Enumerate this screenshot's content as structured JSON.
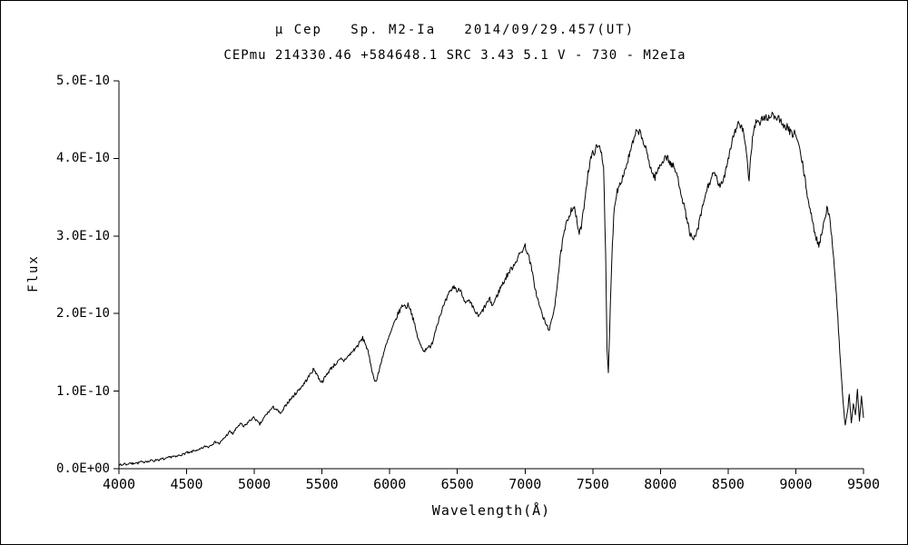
{
  "chart_data": {
    "type": "line",
    "title": "μ Cep   Sp. M2-Ia   2014/09/29.457(UT)",
    "subtitle": "CEPmu 214330.46 +584648.1 SRC 3.43 5.1 V - 730 - M2eIa",
    "xlabel": "Wavelength(Å)",
    "ylabel": "Flux",
    "xlim": [
      4000,
      9500
    ],
    "ylim": [
      0,
      5e-10
    ],
    "y_max_1e10": 5,
    "grid": false,
    "legend": "none",
    "line_color": "#000000",
    "background_color": "#ffffff",
    "noise_amplitude_1e10": 0.04,
    "x_ticks": [
      {
        "v": 4000,
        "label": "4000"
      },
      {
        "v": 4500,
        "label": "4500"
      },
      {
        "v": 5000,
        "label": "5000"
      },
      {
        "v": 5500,
        "label": "5500"
      },
      {
        "v": 6000,
        "label": "6000"
      },
      {
        "v": 6500,
        "label": "6500"
      },
      {
        "v": 7000,
        "label": "7000"
      },
      {
        "v": 7500,
        "label": "7500"
      },
      {
        "v": 8000,
        "label": "8000"
      },
      {
        "v": 8500,
        "label": "8500"
      },
      {
        "v": 9000,
        "label": "9000"
      },
      {
        "v": 9500,
        "label": "9500"
      }
    ],
    "y_ticks": [
      {
        "v": 0,
        "label": "0.0E+00"
      },
      {
        "v": 1,
        "label": "1.0E-10"
      },
      {
        "v": 2,
        "label": "2.0E-10"
      },
      {
        "v": 3,
        "label": "3.0E-10"
      },
      {
        "v": 4,
        "label": "4.0E-10"
      },
      {
        "v": 5,
        "label": "5.0E-10"
      }
    ],
    "series": [
      {
        "name": "mu Cep spectrum",
        "points_unit": [
          "wavelength_angstrom",
          "flux_1e-10"
        ],
        "points": [
          [
            4000,
            0.06
          ],
          [
            4020,
            0.04
          ],
          [
            4040,
            0.07
          ],
          [
            4060,
            0.05
          ],
          [
            4080,
            0.08
          ],
          [
            4100,
            0.06
          ],
          [
            4120,
            0.08
          ],
          [
            4140,
            0.07
          ],
          [
            4160,
            0.09
          ],
          [
            4180,
            0.08
          ],
          [
            4200,
            0.1
          ],
          [
            4220,
            0.09
          ],
          [
            4240,
            0.11
          ],
          [
            4260,
            0.1
          ],
          [
            4280,
            0.12
          ],
          [
            4300,
            0.11
          ],
          [
            4320,
            0.13
          ],
          [
            4340,
            0.12
          ],
          [
            4360,
            0.14
          ],
          [
            4380,
            0.15
          ],
          [
            4400,
            0.16
          ],
          [
            4420,
            0.15
          ],
          [
            4440,
            0.17
          ],
          [
            4460,
            0.18
          ],
          [
            4480,
            0.19
          ],
          [
            4500,
            0.21
          ],
          [
            4520,
            0.2
          ],
          [
            4540,
            0.22
          ],
          [
            4560,
            0.24
          ],
          [
            4580,
            0.23
          ],
          [
            4600,
            0.25
          ],
          [
            4620,
            0.27
          ],
          [
            4640,
            0.29
          ],
          [
            4660,
            0.28
          ],
          [
            4680,
            0.31
          ],
          [
            4700,
            0.33
          ],
          [
            4720,
            0.35
          ],
          [
            4740,
            0.32
          ],
          [
            4760,
            0.36
          ],
          [
            4780,
            0.4
          ],
          [
            4800,
            0.44
          ],
          [
            4820,
            0.48
          ],
          [
            4840,
            0.45
          ],
          [
            4860,
            0.5
          ],
          [
            4880,
            0.55
          ],
          [
            4900,
            0.58
          ],
          [
            4920,
            0.54
          ],
          [
            4940,
            0.57
          ],
          [
            4960,
            0.61
          ],
          [
            4980,
            0.64
          ],
          [
            5000,
            0.66
          ],
          [
            5020,
            0.61
          ],
          [
            5040,
            0.57
          ],
          [
            5060,
            0.62
          ],
          [
            5080,
            0.68
          ],
          [
            5100,
            0.72
          ],
          [
            5120,
            0.76
          ],
          [
            5140,
            0.79
          ],
          [
            5160,
            0.77
          ],
          [
            5180,
            0.73
          ],
          [
            5200,
            0.71
          ],
          [
            5220,
            0.78
          ],
          [
            5240,
            0.84
          ],
          [
            5260,
            0.88
          ],
          [
            5280,
            0.92
          ],
          [
            5300,
            0.96
          ],
          [
            5320,
            1.0
          ],
          [
            5340,
            1.04
          ],
          [
            5360,
            1.08
          ],
          [
            5380,
            1.13
          ],
          [
            5400,
            1.18
          ],
          [
            5420,
            1.24
          ],
          [
            5440,
            1.28
          ],
          [
            5460,
            1.23
          ],
          [
            5480,
            1.15
          ],
          [
            5500,
            1.12
          ],
          [
            5520,
            1.17
          ],
          [
            5540,
            1.23
          ],
          [
            5560,
            1.28
          ],
          [
            5580,
            1.32
          ],
          [
            5600,
            1.35
          ],
          [
            5620,
            1.38
          ],
          [
            5640,
            1.41
          ],
          [
            5660,
            1.39
          ],
          [
            5680,
            1.43
          ],
          [
            5700,
            1.46
          ],
          [
            5720,
            1.5
          ],
          [
            5740,
            1.54
          ],
          [
            5760,
            1.58
          ],
          [
            5780,
            1.63
          ],
          [
            5800,
            1.68
          ],
          [
            5820,
            1.62
          ],
          [
            5840,
            1.5
          ],
          [
            5860,
            1.35
          ],
          [
            5880,
            1.18
          ],
          [
            5900,
            1.12
          ],
          [
            5920,
            1.25
          ],
          [
            5940,
            1.4
          ],
          [
            5960,
            1.52
          ],
          [
            5980,
            1.62
          ],
          [
            6000,
            1.72
          ],
          [
            6020,
            1.81
          ],
          [
            6040,
            1.9
          ],
          [
            6060,
            1.99
          ],
          [
            6080,
            2.06
          ],
          [
            6100,
            2.12
          ],
          [
            6120,
            2.08
          ],
          [
            6140,
            2.12
          ],
          [
            6160,
            2.02
          ],
          [
            6180,
            1.88
          ],
          [
            6200,
            1.74
          ],
          [
            6220,
            1.62
          ],
          [
            6240,
            1.55
          ],
          [
            6260,
            1.52
          ],
          [
            6280,
            1.58
          ],
          [
            6300,
            1.55
          ],
          [
            6320,
            1.66
          ],
          [
            6340,
            1.8
          ],
          [
            6360,
            1.92
          ],
          [
            6380,
            2.02
          ],
          [
            6400,
            2.1
          ],
          [
            6420,
            2.18
          ],
          [
            6440,
            2.26
          ],
          [
            6460,
            2.32
          ],
          [
            6480,
            2.35
          ],
          [
            6500,
            2.28
          ],
          [
            6520,
            2.32
          ],
          [
            6540,
            2.24
          ],
          [
            6560,
            2.12
          ],
          [
            6580,
            2.16
          ],
          [
            6600,
            2.12
          ],
          [
            6620,
            2.06
          ],
          [
            6640,
            2.0
          ],
          [
            6660,
            1.96
          ],
          [
            6680,
            2.02
          ],
          [
            6700,
            2.08
          ],
          [
            6720,
            2.14
          ],
          [
            6740,
            2.18
          ],
          [
            6760,
            2.1
          ],
          [
            6780,
            2.18
          ],
          [
            6800,
            2.26
          ],
          [
            6820,
            2.34
          ],
          [
            6840,
            2.4
          ],
          [
            6860,
            2.47
          ],
          [
            6880,
            2.53
          ],
          [
            6900,
            2.58
          ],
          [
            6920,
            2.64
          ],
          [
            6940,
            2.7
          ],
          [
            6960,
            2.76
          ],
          [
            6980,
            2.82
          ],
          [
            7000,
            2.87
          ],
          [
            7020,
            2.78
          ],
          [
            7040,
            2.64
          ],
          [
            7060,
            2.46
          ],
          [
            7080,
            2.28
          ],
          [
            7100,
            2.14
          ],
          [
            7120,
            2.02
          ],
          [
            7140,
            1.92
          ],
          [
            7160,
            1.84
          ],
          [
            7180,
            1.8
          ],
          [
            7200,
            1.92
          ],
          [
            7220,
            2.12
          ],
          [
            7240,
            2.42
          ],
          [
            7260,
            2.72
          ],
          [
            7280,
            2.96
          ],
          [
            7300,
            3.12
          ],
          [
            7320,
            3.24
          ],
          [
            7340,
            3.34
          ],
          [
            7360,
            3.38
          ],
          [
            7380,
            3.22
          ],
          [
            7400,
            3.02
          ],
          [
            7420,
            3.16
          ],
          [
            7440,
            3.46
          ],
          [
            7460,
            3.76
          ],
          [
            7480,
            3.96
          ],
          [
            7500,
            4.06
          ],
          [
            7520,
            4.12
          ],
          [
            7540,
            4.15
          ],
          [
            7560,
            4.12
          ],
          [
            7580,
            3.9
          ],
          [
            7595,
            2.8
          ],
          [
            7605,
            1.55
          ],
          [
            7615,
            1.22
          ],
          [
            7630,
            2.1
          ],
          [
            7645,
            2.9
          ],
          [
            7660,
            3.4
          ],
          [
            7680,
            3.58
          ],
          [
            7700,
            3.68
          ],
          [
            7720,
            3.76
          ],
          [
            7740,
            3.86
          ],
          [
            7760,
            3.98
          ],
          [
            7780,
            4.1
          ],
          [
            7800,
            4.22
          ],
          [
            7820,
            4.32
          ],
          [
            7840,
            4.36
          ],
          [
            7860,
            4.28
          ],
          [
            7880,
            4.18
          ],
          [
            7900,
            4.06
          ],
          [
            7920,
            3.94
          ],
          [
            7940,
            3.8
          ],
          [
            7960,
            3.76
          ],
          [
            7980,
            3.84
          ],
          [
            8000,
            3.92
          ],
          [
            8020,
            3.98
          ],
          [
            8040,
            4.03
          ],
          [
            8060,
            3.98
          ],
          [
            8080,
            3.92
          ],
          [
            8100,
            3.88
          ],
          [
            8120,
            3.8
          ],
          [
            8140,
            3.66
          ],
          [
            8160,
            3.5
          ],
          [
            8180,
            3.34
          ],
          [
            8200,
            3.18
          ],
          [
            8220,
            3.02
          ],
          [
            8240,
            2.94
          ],
          [
            8260,
            3.0
          ],
          [
            8280,
            3.12
          ],
          [
            8300,
            3.28
          ],
          [
            8320,
            3.44
          ],
          [
            8340,
            3.58
          ],
          [
            8360,
            3.68
          ],
          [
            8380,
            3.76
          ],
          [
            8400,
            3.8
          ],
          [
            8420,
            3.72
          ],
          [
            8440,
            3.62
          ],
          [
            8460,
            3.7
          ],
          [
            8480,
            3.84
          ],
          [
            8500,
            4.0
          ],
          [
            8520,
            4.16
          ],
          [
            8540,
            4.3
          ],
          [
            8560,
            4.4
          ],
          [
            8580,
            4.45
          ],
          [
            8600,
            4.4
          ],
          [
            8620,
            4.28
          ],
          [
            8640,
            3.95
          ],
          [
            8655,
            3.72
          ],
          [
            8670,
            4.1
          ],
          [
            8690,
            4.4
          ],
          [
            8710,
            4.48
          ],
          [
            8730,
            4.44
          ],
          [
            8750,
            4.5
          ],
          [
            8770,
            4.54
          ],
          [
            8790,
            4.5
          ],
          [
            8810,
            4.56
          ],
          [
            8830,
            4.58
          ],
          [
            8850,
            4.5
          ],
          [
            8870,
            4.55
          ],
          [
            8890,
            4.46
          ],
          [
            8910,
            4.38
          ],
          [
            8930,
            4.42
          ],
          [
            8950,
            4.36
          ],
          [
            8970,
            4.3
          ],
          [
            8990,
            4.34
          ],
          [
            9010,
            4.24
          ],
          [
            9030,
            4.1
          ],
          [
            9050,
            3.92
          ],
          [
            9070,
            3.7
          ],
          [
            9090,
            3.48
          ],
          [
            9110,
            3.3
          ],
          [
            9130,
            3.12
          ],
          [
            9150,
            2.98
          ],
          [
            9170,
            2.88
          ],
          [
            9190,
            3.02
          ],
          [
            9210,
            3.22
          ],
          [
            9230,
            3.36
          ],
          [
            9250,
            3.22
          ],
          [
            9270,
            2.92
          ],
          [
            9290,
            2.5
          ],
          [
            9310,
            1.95
          ],
          [
            9330,
            1.35
          ],
          [
            9350,
            0.85
          ],
          [
            9365,
            0.55
          ],
          [
            9380,
            0.72
          ],
          [
            9395,
            0.95
          ],
          [
            9410,
            0.58
          ],
          [
            9425,
            0.85
          ],
          [
            9440,
            0.68
          ],
          [
            9455,
            1.02
          ],
          [
            9470,
            0.62
          ],
          [
            9485,
            0.92
          ],
          [
            9500,
            0.65
          ]
        ]
      }
    ]
  }
}
